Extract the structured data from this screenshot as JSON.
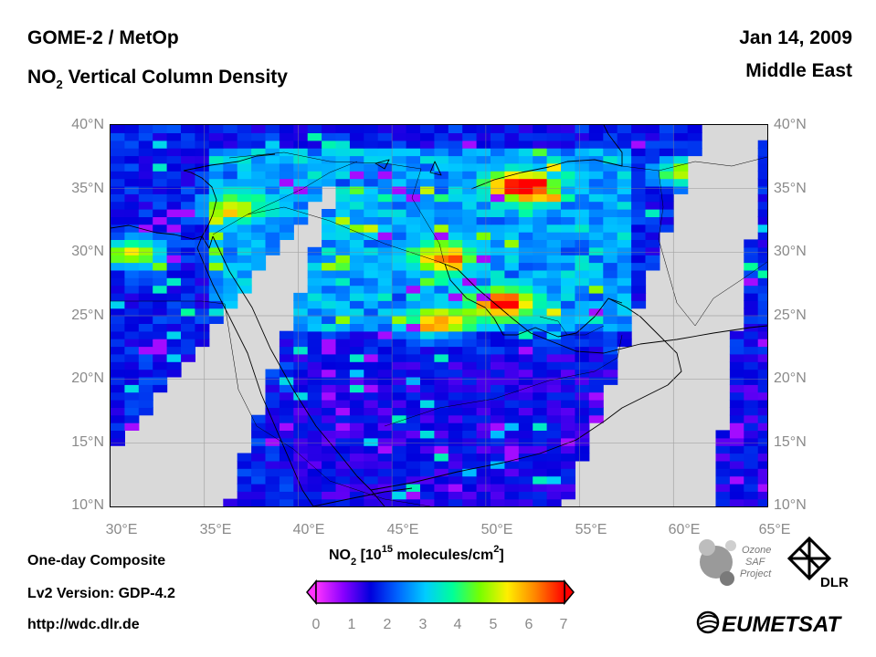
{
  "header": {
    "instrument": "GOME-2 / MetOp",
    "product_prefix": "NO",
    "product_sub": "2",
    "product_suffix": " Vertical Column Density",
    "date": "Jan 14, 2009",
    "region": "Middle East"
  },
  "map": {
    "lon_range": [
      30,
      65
    ],
    "lat_range": [
      10,
      40
    ],
    "lat_ticks": [
      "40°N",
      "35°N",
      "30°N",
      "25°N",
      "20°N",
      "15°N",
      "10°N"
    ],
    "lon_ticks": [
      "30°E",
      "35°E",
      "40°E",
      "45°E",
      "50°E",
      "55°E",
      "60°E",
      "65°E"
    ],
    "no_data_color": "#d9d9d9",
    "hotspots": [
      {
        "lon": 52,
        "lat": 35.2,
        "value": 7.0
      },
      {
        "lon": 51,
        "lat": 26.0,
        "value": 6.2
      },
      {
        "lon": 47.8,
        "lat": 29.5,
        "value": 5.0
      },
      {
        "lon": 31.2,
        "lat": 30.0,
        "value": 5.3
      },
      {
        "lon": 60.5,
        "lat": 36.3,
        "value": 4.6
      },
      {
        "lon": 36.5,
        "lat": 33.5,
        "value": 4.2
      },
      {
        "lon": 47.5,
        "lat": 24.5,
        "value": 5.0
      }
    ]
  },
  "footer": {
    "composite": "One-day Composite",
    "version": "Lv2 Version: GDP-4.2",
    "url": "http://wdc.dlr.de"
  },
  "colorbar": {
    "label_prefix": "NO",
    "label_sub": "2",
    "label_mid": " [10",
    "label_sup": "15",
    "label_mid2": " molecules/cm",
    "label_sup2": "2",
    "label_end": "]",
    "range": [
      0,
      7
    ],
    "ticks": [
      "0",
      "1",
      "2",
      "3",
      "4",
      "5",
      "6",
      "7"
    ],
    "colors": [
      "#ff33ff",
      "#8800ff",
      "#0000dd",
      "#0066ff",
      "#00ccff",
      "#00ff99",
      "#77ff00",
      "#ffee00",
      "#ff8800",
      "#ff0000"
    ]
  },
  "logos": {
    "ozone_line1": "Ozone",
    "ozone_line2": "SAF",
    "ozone_line3": "Project",
    "dlr": "DLR",
    "eumetsat": "EUMETSAT"
  }
}
